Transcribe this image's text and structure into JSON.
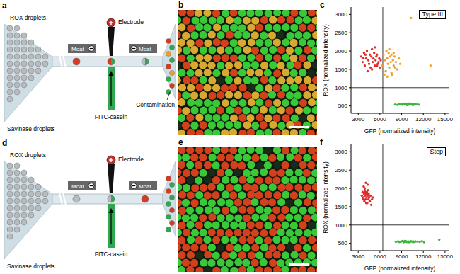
{
  "diagrams": [
    {
      "panel": "a",
      "texts": {
        "top_input": "ROX droplets",
        "bottom_input": "Savinase droplets",
        "electrode": "Electrode",
        "left_moat": "Moat",
        "right_moat": "Moat",
        "reagent": "FITC-casein",
        "output": "Contamination"
      }
    },
    {
      "panel": "d",
      "texts": {
        "top_input": "ROX droplets",
        "bottom_input": "Savinase droplets",
        "electrode": "Electrode",
        "left_moat": "Moat",
        "right_moat": "Moat",
        "reagent": "FITC-casein"
      }
    }
  ],
  "images": [
    {
      "panel": "b"
    },
    {
      "panel": "e"
    }
  ],
  "chart_data": [
    {
      "panel": "c",
      "type": "scatter",
      "title": "Type III",
      "x_label": "GFP (normalized intensity)",
      "y_label": "ROX (normalized intensity)",
      "xlim": [
        2000,
        15500
      ],
      "ylim": [
        300,
        3200
      ],
      "xticks": [
        3000,
        6000,
        9000,
        12000,
        15000
      ],
      "yticks": [
        500,
        1000,
        1500,
        2000,
        2500,
        3000
      ],
      "thresholds": {
        "x": 6400,
        "y": 1000
      },
      "series": [
        {
          "color": "#e02a2a",
          "x": [
            3400,
            3600,
            3800,
            3900,
            4100,
            4200,
            4400,
            4500,
            4600,
            4700,
            4800,
            4900,
            5000,
            5100,
            5200,
            5300,
            5400,
            5500,
            5600,
            5700,
            5800,
            5900,
            6000,
            6100,
            4300,
            4900,
            5300,
            3700,
            5600,
            4000
          ],
          "y": [
            1850,
            1700,
            1950,
            1600,
            1800,
            2000,
            1750,
            1650,
            1900,
            1550,
            1850,
            2050,
            1700,
            1800,
            1950,
            1600,
            1750,
            1850,
            1900,
            1650,
            1700,
            1800,
            1550,
            1750,
            1450,
            1500,
            2100,
            1800,
            1600,
            1900
          ]
        },
        {
          "color": "#f0a030",
          "x": [
            6300,
            6500,
            6700,
            6800,
            6900,
            7000,
            7100,
            7200,
            7300,
            7400,
            7500,
            7600,
            7700,
            7800,
            7900,
            8000,
            8200,
            8400,
            8600,
            8800,
            7000,
            7300,
            7600,
            6600,
            7900,
            8100,
            10300,
            13000
          ],
          "y": [
            1600,
            1900,
            1750,
            1450,
            2000,
            1800,
            1650,
            1950,
            1550,
            1850,
            1700,
            1900,
            1350,
            1750,
            1600,
            1850,
            1700,
            1500,
            1800,
            1650,
            1300,
            2050,
            1400,
            1350,
            1950,
            1550,
            2900,
            1600
          ]
        },
        {
          "color": "#3cb83c",
          "x": [
            8100,
            8400,
            8700,
            8900,
            9100,
            9300,
            9400,
            9600,
            9700,
            9800,
            9900,
            10000,
            10100,
            10200,
            10400,
            10500,
            10700,
            10900,
            11100,
            11400,
            9200,
            9500,
            9800,
            10300,
            10600
          ],
          "y": [
            540,
            530,
            555,
            545,
            535,
            560,
            540,
            550,
            525,
            545,
            555,
            535,
            565,
            540,
            550,
            530,
            545,
            555,
            540,
            535,
            550,
            560,
            530,
            545,
            525
          ]
        }
      ]
    },
    {
      "panel": "f",
      "type": "scatter",
      "title": "Step",
      "x_label": "GFP (normalized intensity)",
      "y_label": "ROX (normalized intensity)",
      "xlim": [
        2000,
        15500
      ],
      "ylim": [
        300,
        3200
      ],
      "xticks": [
        3000,
        6000,
        9000,
        12000,
        15000
      ],
      "yticks": [
        500,
        1000,
        1500,
        2000,
        2500,
        3000
      ],
      "thresholds": {
        "x": 6400,
        "y": 1000
      },
      "series": [
        {
          "color": "#e02a2a",
          "x": [
            3500,
            3600,
            3700,
            3750,
            3800,
            3850,
            3900,
            3950,
            4000,
            4050,
            4100,
            4150,
            4200,
            4250,
            4300,
            4350,
            4400,
            4450,
            4500,
            4600,
            4700,
            4800,
            4900,
            5000,
            3900,
            4100,
            4300,
            4000,
            4200,
            3650
          ],
          "y": [
            1800,
            1900,
            1750,
            2050,
            1850,
            1650,
            1950,
            1800,
            1700,
            2150,
            1850,
            1750,
            1900,
            1600,
            1800,
            1950,
            1700,
            1850,
            1750,
            1650,
            1800,
            1550,
            1700,
            1750,
            2000,
            1600,
            2100,
            1900,
            1850,
            1700
          ]
        },
        {
          "color": "#3cb83c",
          "x": [
            8200,
            8500,
            8700,
            8900,
            9100,
            9300,
            9500,
            9600,
            9800,
            9900,
            10000,
            10200,
            10300,
            10500,
            10700,
            10900,
            11200,
            11500,
            11800,
            12100,
            9400,
            9700,
            10100,
            10600,
            14200
          ],
          "y": [
            540,
            550,
            535,
            545,
            560,
            530,
            545,
            555,
            540,
            550,
            530,
            545,
            555,
            540,
            535,
            550,
            545,
            540,
            555,
            530,
            560,
            535,
            545,
            550,
            600
          ]
        }
      ]
    }
  ]
}
